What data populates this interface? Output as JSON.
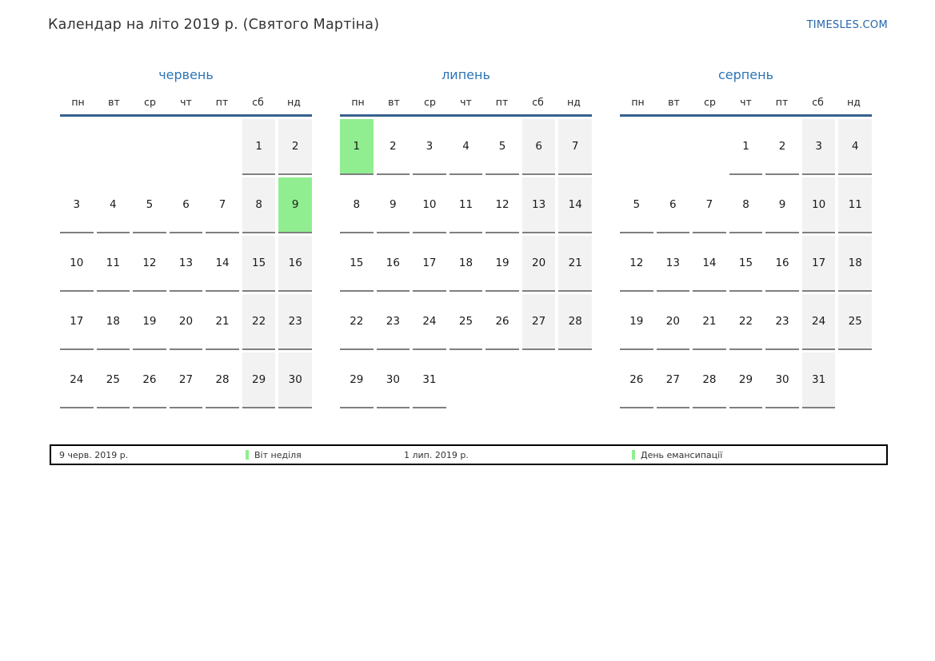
{
  "header": {
    "title": "Календар на літо 2019 р. (Святого Мартіна)",
    "site_link": "TIMESLES.COM"
  },
  "weekdays": [
    "пн",
    "вт",
    "ср",
    "чт",
    "пт",
    "сб",
    "нд"
  ],
  "months": [
    {
      "name": "червень",
      "highlighted_day": "9",
      "weeks": [
        [
          "",
          "",
          "",
          "",
          "",
          "1",
          "2"
        ],
        [
          "3",
          "4",
          "5",
          "6",
          "7",
          "8",
          "9"
        ],
        [
          "10",
          "11",
          "12",
          "13",
          "14",
          "15",
          "16"
        ],
        [
          "17",
          "18",
          "19",
          "20",
          "21",
          "22",
          "23"
        ],
        [
          "24",
          "25",
          "26",
          "27",
          "28",
          "29",
          "30"
        ]
      ]
    },
    {
      "name": "липень",
      "highlighted_day": "1",
      "weeks": [
        [
          "1",
          "2",
          "3",
          "4",
          "5",
          "6",
          "7"
        ],
        [
          "8",
          "9",
          "10",
          "11",
          "12",
          "13",
          "14"
        ],
        [
          "15",
          "16",
          "17",
          "18",
          "19",
          "20",
          "21"
        ],
        [
          "22",
          "23",
          "24",
          "25",
          "26",
          "27",
          "28"
        ],
        [
          "29",
          "30",
          "31",
          "",
          "",
          "",
          ""
        ]
      ]
    },
    {
      "name": "серпень",
      "highlighted_day": "",
      "weeks": [
        [
          "",
          "",
          "",
          "1",
          "2",
          "3",
          "4"
        ],
        [
          "5",
          "6",
          "7",
          "8",
          "9",
          "10",
          "11"
        ],
        [
          "12",
          "13",
          "14",
          "15",
          "16",
          "17",
          "18"
        ],
        [
          "19",
          "20",
          "21",
          "22",
          "23",
          "24",
          "25"
        ],
        [
          "26",
          "27",
          "28",
          "29",
          "30",
          "31",
          ""
        ]
      ]
    }
  ],
  "legend": [
    {
      "date": "9 черв. 2019 р.",
      "label": "Віт неділя"
    },
    {
      "date": "1 лип. 2019 р.",
      "label": "День емансипації"
    }
  ],
  "colors": {
    "highlight_green": "#90ee90",
    "weekend_gray": "#f2f2f2",
    "header_line_blue": "#36618f",
    "month_title_blue": "#2e75b6",
    "link_blue": "#2467ae",
    "cell_border_gray": "#7f7f7f"
  }
}
